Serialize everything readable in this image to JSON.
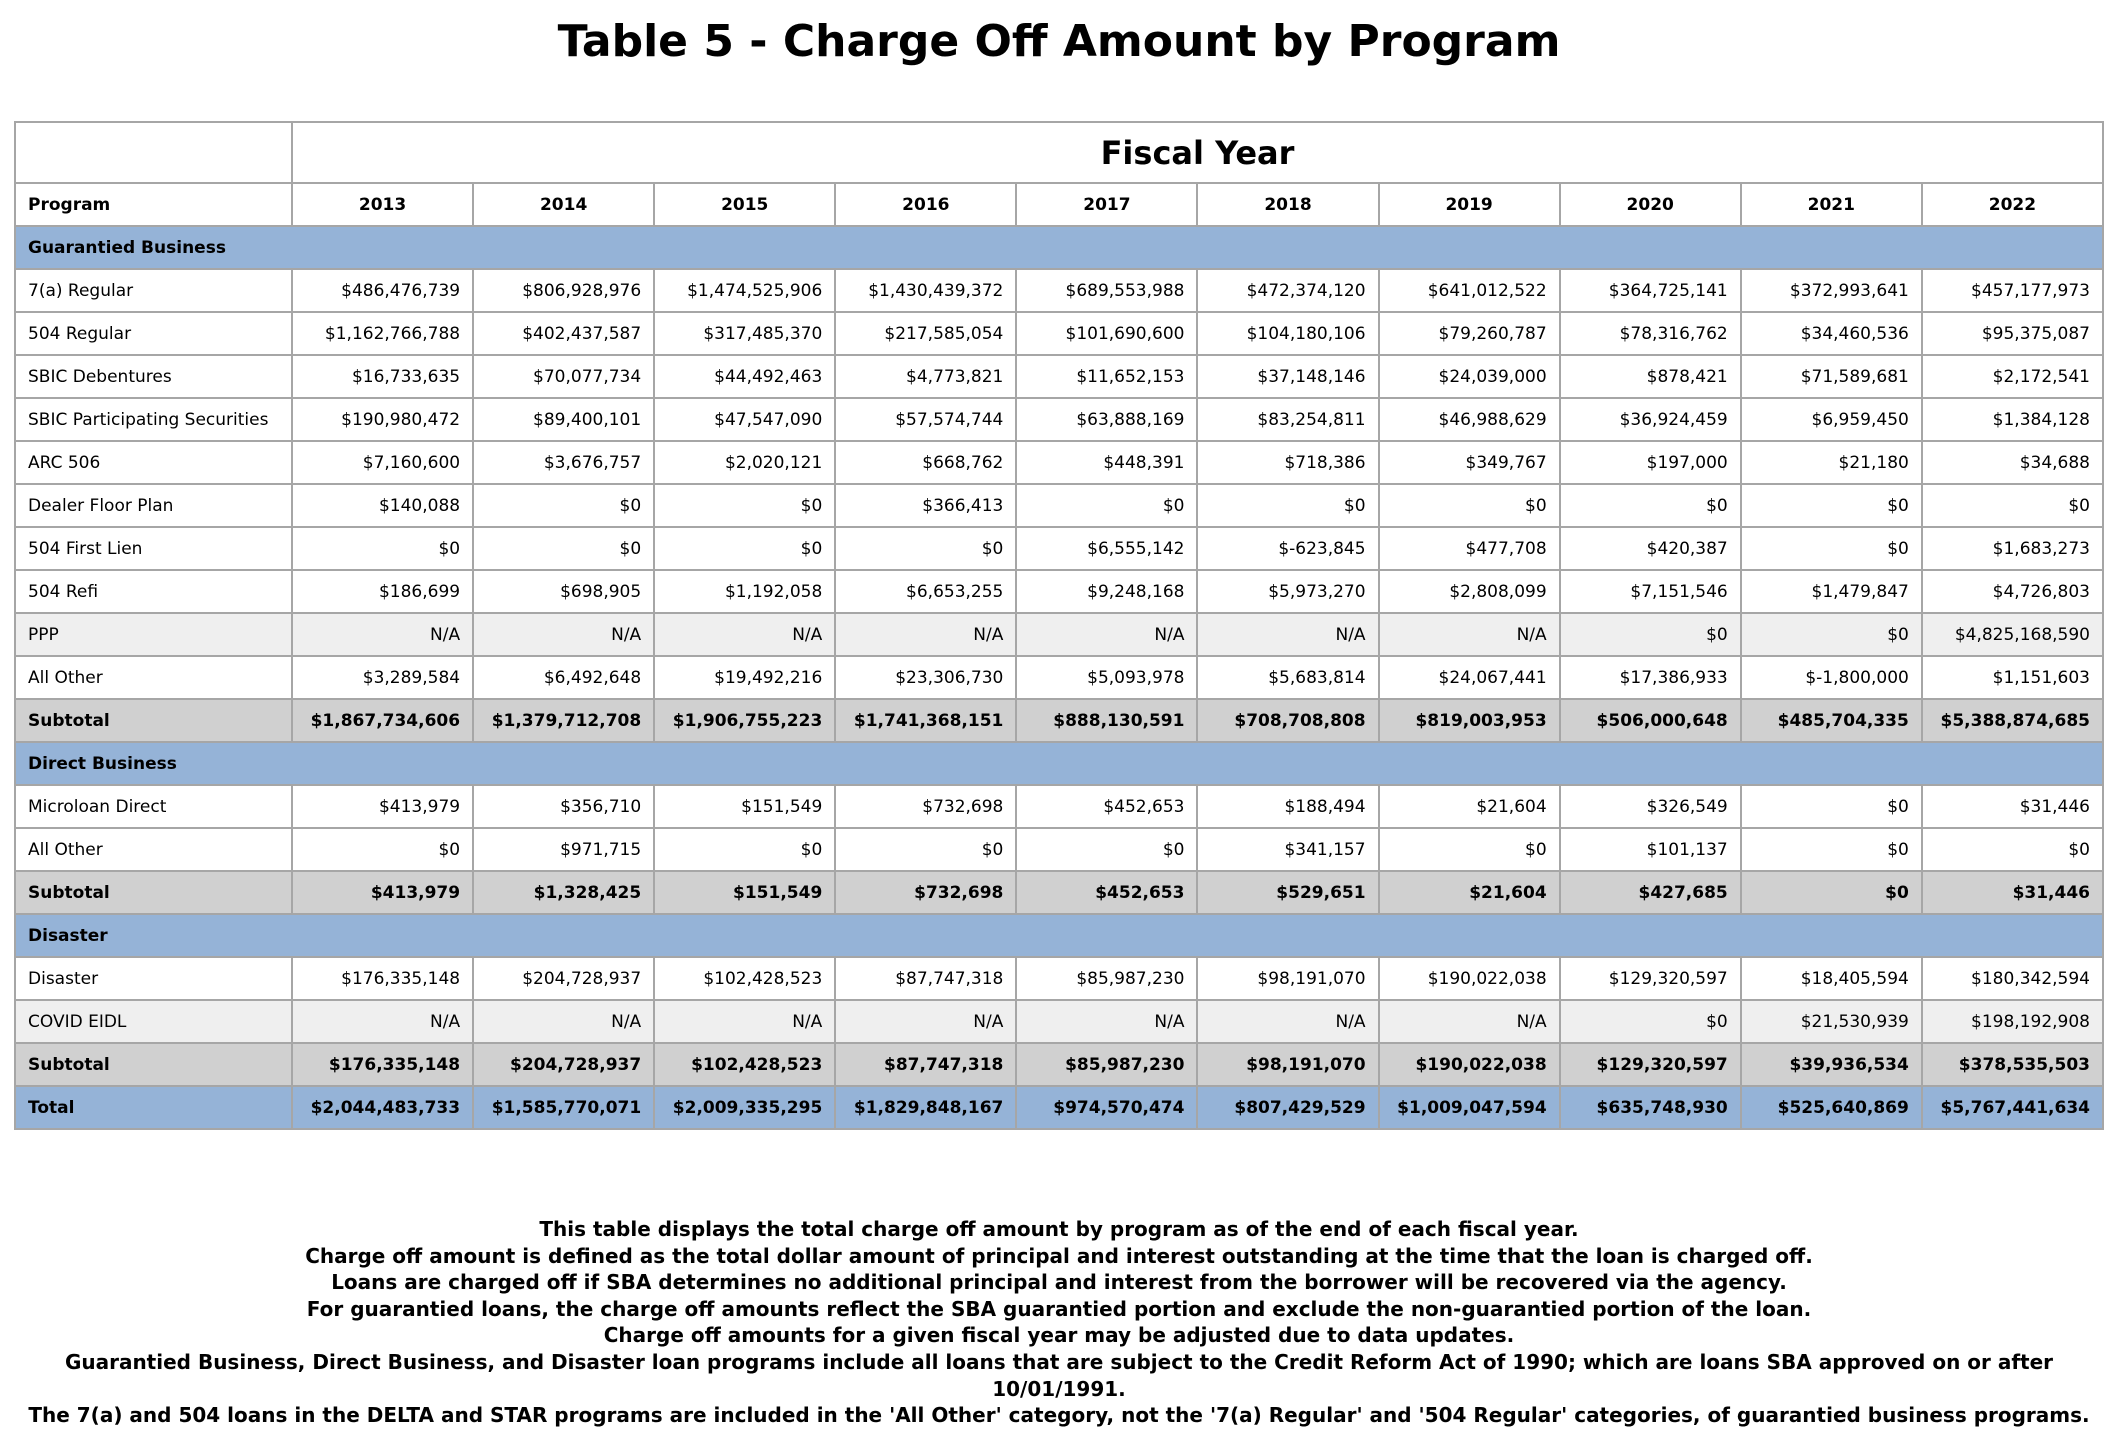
{
  "header": {
    "title": "Table 5 - Charge Off Amount by Program"
  },
  "table": {
    "group_label": "Fiscal Year",
    "columns": [
      "Program",
      "2013",
      "2014",
      "2015",
      "2016",
      "2017",
      "2018",
      "2019",
      "2020",
      "2021",
      "2022"
    ],
    "sections": [
      {
        "heading": "Guarantied Business",
        "rows": [
          [
            "7(a) Regular",
            "$486,476,739",
            "$806,928,976",
            "$1,474,525,906",
            "$1,430,439,372",
            "$689,553,988",
            "$472,374,120",
            "$641,012,522",
            "$364,725,141",
            "$372,993,641",
            "$457,177,973"
          ],
          [
            "504 Regular",
            "$1,162,766,788",
            "$402,437,587",
            "$317,485,370",
            "$217,585,054",
            "$101,690,600",
            "$104,180,106",
            "$79,260,787",
            "$78,316,762",
            "$34,460,536",
            "$95,375,087"
          ],
          [
            "SBIC Debentures",
            "$16,733,635",
            "$70,077,734",
            "$44,492,463",
            "$4,773,821",
            "$11,652,153",
            "$37,148,146",
            "$24,039,000",
            "$878,421",
            "$71,589,681",
            "$2,172,541"
          ],
          [
            "SBIC Participating Securities",
            "$190,980,472",
            "$89,400,101",
            "$47,547,090",
            "$57,574,744",
            "$63,888,169",
            "$83,254,811",
            "$46,988,629",
            "$36,924,459",
            "$6,959,450",
            "$1,384,128"
          ],
          [
            "ARC 506",
            "$7,160,600",
            "$3,676,757",
            "$2,020,121",
            "$668,762",
            "$448,391",
            "$718,386",
            "$349,767",
            "$197,000",
            "$21,180",
            "$34,688"
          ],
          [
            "Dealer Floor Plan",
            "$140,088",
            "$0",
            "$0",
            "$366,413",
            "$0",
            "$0",
            "$0",
            "$0",
            "$0",
            "$0"
          ],
          [
            "504 First Lien",
            "$0",
            "$0",
            "$0",
            "$0",
            "$6,555,142",
            "$-623,845",
            "$477,708",
            "$420,387",
            "$0",
            "$1,683,273"
          ],
          [
            "504 Refi",
            "$186,699",
            "$698,905",
            "$1,192,058",
            "$6,653,255",
            "$9,248,168",
            "$5,973,270",
            "$2,808,099",
            "$7,151,546",
            "$1,479,847",
            "$4,726,803"
          ],
          [
            "PPP",
            "N/A",
            "N/A",
            "N/A",
            "N/A",
            "N/A",
            "N/A",
            "N/A",
            "$0",
            "$0",
            "$4,825,168,590"
          ],
          [
            "All Other",
            "$3,289,584",
            "$6,492,648",
            "$19,492,216",
            "$23,306,730",
            "$5,093,978",
            "$5,683,814",
            "$24,067,441",
            "$17,386,933",
            "$-1,800,000",
            "$1,151,603"
          ]
        ],
        "subtotal": [
          "Subtotal",
          "$1,867,734,606",
          "$1,379,712,708",
          "$1,906,755,223",
          "$1,741,368,151",
          "$888,130,591",
          "$708,708,808",
          "$819,003,953",
          "$506,000,648",
          "$485,704,335",
          "$5,388,874,685"
        ]
      },
      {
        "heading": "Direct Business",
        "rows": [
          [
            "Microloan Direct",
            "$413,979",
            "$356,710",
            "$151,549",
            "$732,698",
            "$452,653",
            "$188,494",
            "$21,604",
            "$326,549",
            "$0",
            "$31,446"
          ],
          [
            "All Other",
            "$0",
            "$971,715",
            "$0",
            "$0",
            "$0",
            "$341,157",
            "$0",
            "$101,137",
            "$0",
            "$0"
          ]
        ],
        "subtotal": [
          "Subtotal",
          "$413,979",
          "$1,328,425",
          "$151,549",
          "$732,698",
          "$452,653",
          "$529,651",
          "$21,604",
          "$427,685",
          "$0",
          "$31,446"
        ]
      },
      {
        "heading": "Disaster",
        "rows": [
          [
            "Disaster",
            "$176,335,148",
            "$204,728,937",
            "$102,428,523",
            "$87,747,318",
            "$85,987,230",
            "$98,191,070",
            "$190,022,038",
            "$129,320,597",
            "$18,405,594",
            "$180,342,594"
          ],
          [
            "COVID EIDL",
            "N/A",
            "N/A",
            "N/A",
            "N/A",
            "N/A",
            "N/A",
            "N/A",
            "$0",
            "$21,530,939",
            "$198,192,908"
          ]
        ],
        "subtotal": [
          "Subtotal",
          "$176,335,148",
          "$204,728,937",
          "$102,428,523",
          "$87,747,318",
          "$85,987,230",
          "$98,191,070",
          "$190,022,038",
          "$129,320,597",
          "$39,936,534",
          "$378,535,503"
        ]
      }
    ],
    "total": [
      "Total",
      "$2,044,483,733",
      "$1,585,770,071",
      "$2,009,335,295",
      "$1,829,848,167",
      "$974,570,474",
      "$807,429,529",
      "$1,009,047,594",
      "$635,748,930",
      "$525,640,869",
      "$5,767,441,634"
    ]
  },
  "notes": [
    "This table displays the total charge off amount by program as of the end of each fiscal year.",
    "Charge off amount is defined as the total dollar amount of principal and interest outstanding at the time that the loan is charged off.",
    "Loans are charged off if SBA determines no additional principal and interest from the borrower will be recovered via the agency.",
    "For guarantied loans, the charge off amounts reflect the SBA guarantied portion and exclude the non-guarantied portion of the loan.",
    "Charge off amounts for a given fiscal year may be adjusted due to data updates.",
    "Guarantied Business, Direct Business, and Disaster loan programs include all loans that are subject to the Credit Reform Act of 1990; which are loans SBA approved on or after 10/01/1991.",
    "The 7(a) and 504 loans in the DELTA and STAR programs are included in the 'All Other' category, not the '7(a) Regular' and '504 Regular' categories, of guarantied business programs."
  ]
}
